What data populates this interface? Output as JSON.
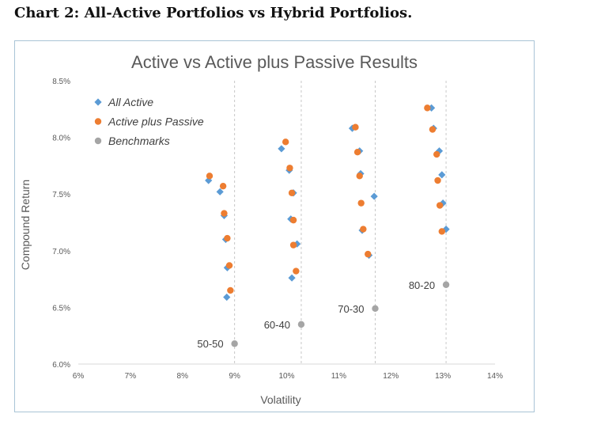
{
  "page": {
    "heading": "Chart 2: All-Active Portfolios vs Hybrid Portfolios."
  },
  "chart_data": {
    "type": "scatter",
    "title": "Active vs Active plus Passive Results",
    "xlabel": "Volatility",
    "ylabel": "Compound Return",
    "xlim": [
      6,
      14
    ],
    "ylim": [
      6.0,
      8.5
    ],
    "x_ticks": [
      "6%",
      "7%",
      "8%",
      "9%",
      "10%",
      "11%",
      "12%",
      "13%",
      "14%"
    ],
    "y_ticks": [
      "6.0%",
      "6.5%",
      "7.0%",
      "7.5%",
      "8.0%",
      "8.5%"
    ],
    "grid": "vertical dashed lines at benchmark volatilities",
    "legend_position": "top-left",
    "colors": {
      "all_active": "#5b9bd5",
      "active_plus_passive": "#ed7d31",
      "benchmarks": "#a5a5a5"
    },
    "series": [
      {
        "name": "All Active",
        "marker": "diamond",
        "points": [
          [
            8.5,
            7.62
          ],
          [
            8.72,
            7.52
          ],
          [
            8.8,
            7.31
          ],
          [
            8.83,
            7.1
          ],
          [
            8.86,
            6.85
          ],
          [
            8.85,
            6.59
          ],
          [
            9.9,
            7.9
          ],
          [
            10.05,
            7.71
          ],
          [
            10.13,
            7.51
          ],
          [
            10.08,
            7.28
          ],
          [
            10.2,
            7.06
          ],
          [
            10.1,
            6.76
          ],
          [
            11.26,
            8.08
          ],
          [
            11.4,
            7.88
          ],
          [
            11.42,
            7.68
          ],
          [
            11.68,
            7.48
          ],
          [
            11.45,
            7.18
          ],
          [
            11.58,
            6.96
          ],
          [
            12.78,
            8.26
          ],
          [
            12.82,
            8.08
          ],
          [
            12.93,
            7.88
          ],
          [
            12.98,
            7.67
          ],
          [
            13.0,
            7.42
          ],
          [
            13.06,
            7.19
          ]
        ]
      },
      {
        "name": "Active plus Passive",
        "marker": "circle",
        "points": [
          [
            8.52,
            7.66
          ],
          [
            8.78,
            7.57
          ],
          [
            8.8,
            7.33
          ],
          [
            8.86,
            7.11
          ],
          [
            8.9,
            6.87
          ],
          [
            8.92,
            6.65
          ],
          [
            9.98,
            7.96
          ],
          [
            10.06,
            7.73
          ],
          [
            10.1,
            7.51
          ],
          [
            10.13,
            7.27
          ],
          [
            10.13,
            7.05
          ],
          [
            10.18,
            6.82
          ],
          [
            11.32,
            8.09
          ],
          [
            11.36,
            7.87
          ],
          [
            11.4,
            7.66
          ],
          [
            11.43,
            7.42
          ],
          [
            11.47,
            7.19
          ],
          [
            11.56,
            6.97
          ],
          [
            12.7,
            8.26
          ],
          [
            12.8,
            8.07
          ],
          [
            12.88,
            7.85
          ],
          [
            12.9,
            7.62
          ],
          [
            12.94,
            7.4
          ],
          [
            12.98,
            7.17
          ]
        ]
      },
      {
        "name": "Benchmarks",
        "marker": "circle",
        "points": [
          [
            9.0,
            6.18
          ],
          [
            10.28,
            6.35
          ],
          [
            11.7,
            6.49
          ],
          [
            13.06,
            6.7
          ]
        ],
        "labels": [
          "50-50",
          "60-40",
          "70-30",
          "80-20"
        ]
      }
    ]
  }
}
